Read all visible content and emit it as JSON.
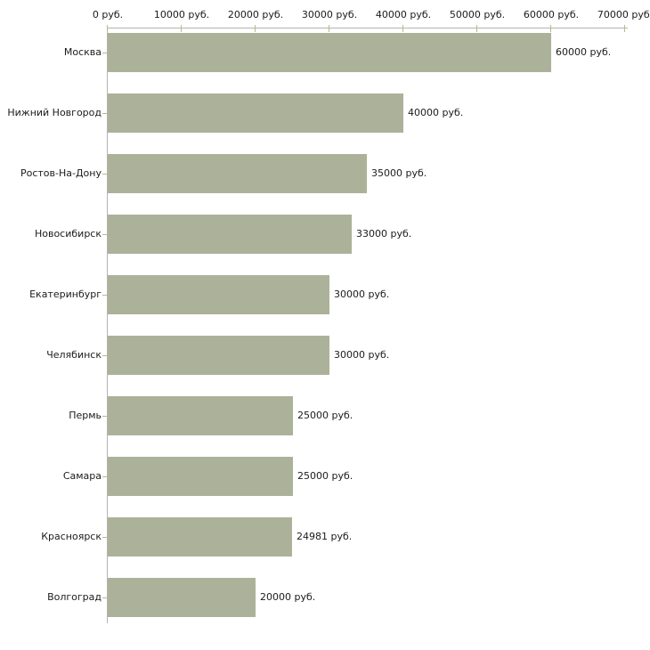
{
  "chart_data": {
    "type": "bar",
    "orientation": "horizontal",
    "title": "",
    "xlabel": "",
    "ylabel": "",
    "categories": [
      "Москва",
      "Нижний Новгород",
      "Ростов-На-Дону",
      "Новосибирск",
      "Екатеринбург",
      "Челябинск",
      "Пермь",
      "Самара",
      "Красноярск",
      "Волгоград"
    ],
    "values": [
      60000,
      40000,
      35000,
      33000,
      30000,
      30000,
      25000,
      25000,
      24981,
      20000
    ],
    "value_labels": [
      "60000 руб.",
      "40000 руб.",
      "35000 руб.",
      "33000 руб.",
      "30000 руб.",
      "30000 руб.",
      "25000 руб.",
      "25000 руб.",
      "24981 руб.",
      "20000 руб."
    ],
    "x_tick_labels": [
      "0 руб.",
      "10000 руб.",
      "20000 руб.",
      "30000 руб.",
      "40000 руб.",
      "50000 руб.",
      "60000 руб.",
      "70000 руб."
    ],
    "x_tick_values": [
      0,
      10000,
      20000,
      30000,
      40000,
      50000,
      60000,
      70000
    ],
    "xlim": [
      0,
      70000
    ],
    "legend": null,
    "grid": false,
    "colors": {
      "bar": "#abb299",
      "axis": "#b3b3b3",
      "tick": "#b9b98d",
      "text": "#1b1b1b",
      "background": "#ffffff"
    }
  }
}
